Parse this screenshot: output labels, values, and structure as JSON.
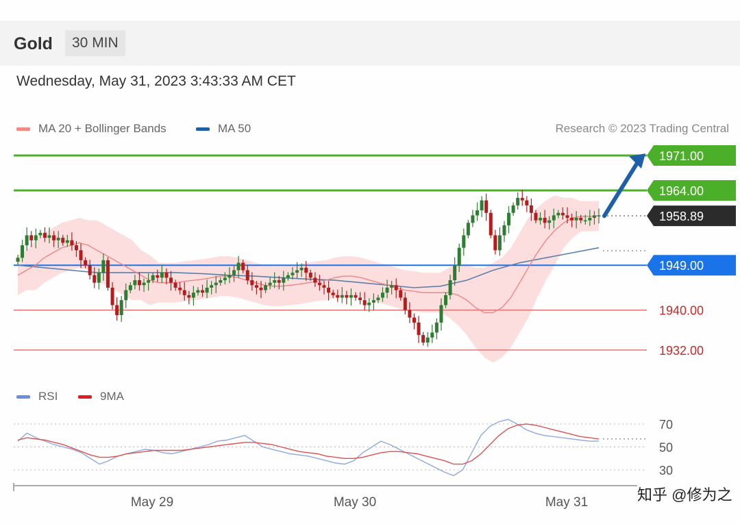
{
  "header": {
    "symbol": "Gold",
    "timeframe": "30 MIN"
  },
  "datetime": "Wednesday, May 31, 2023 3:43:33 AM CET",
  "legend_main": [
    {
      "label": "MA 20 + Bollinger Bands",
      "color": "#f08080"
    },
    {
      "label": "MA 50",
      "color": "#1f5fa8"
    }
  ],
  "copyright": "Research © 2023 Trading Central",
  "legend_rsi": [
    {
      "label": "RSI",
      "color": "#6a8fd8"
    },
    {
      "label": "9MA",
      "color": "#e02020"
    }
  ],
  "watermark": "知乎 @修为之",
  "colors": {
    "up": "#2e7d32",
    "down": "#b71c1c",
    "resistance": "#4caf2a",
    "pivot": "#1a73e8",
    "support": "#e57373",
    "last": "#2b2b2b",
    "band": "#fbd3d3",
    "ma20": "#f08080",
    "ma50": "#5a7fa8",
    "rsi": "#8fa8e0",
    "rsi_ma": "#e05050"
  },
  "chart_data": [
    {
      "type": "candlestick",
      "title": "Gold",
      "interval": "30 MIN",
      "yrange": [
        1930,
        1978
      ],
      "x_ticks": [
        "May 29",
        "May 30",
        "May 31"
      ],
      "levels": [
        {
          "value": 1971.0,
          "label": "1971.00",
          "kind": "resistance"
        },
        {
          "value": 1964.0,
          "label": "1964.00",
          "kind": "resistance"
        },
        {
          "value": 1958.89,
          "label": "1958.89",
          "kind": "last"
        },
        {
          "value": 1949.0,
          "label": "1949.00",
          "kind": "pivot"
        },
        {
          "value": 1940.0,
          "label": "1940.00",
          "kind": "support"
        },
        {
          "value": 1932.0,
          "label": "1932.00",
          "kind": "support"
        }
      ],
      "closes": [
        1950.5,
        1953,
        1955,
        1954,
        1955,
        1955.5,
        1954.5,
        1955,
        1954,
        1954.5,
        1953.5,
        1954,
        1953,
        1952,
        1950,
        1949,
        1947,
        1945.5,
        1947.5,
        1950,
        1944.5,
        1941,
        1939,
        1942,
        1944,
        1945,
        1946,
        1945,
        1945.5,
        1946,
        1947,
        1946.5,
        1947.5,
        1946.5,
        1945.5,
        1944.5,
        1944,
        1943,
        1942.5,
        1943.5,
        1944,
        1943.5,
        1944.5,
        1945,
        1945.5,
        1946,
        1946.5,
        1947,
        1948,
        1949.5,
        1948,
        1946,
        1945,
        1944.5,
        1944,
        1945,
        1945.5,
        1946,
        1945.5,
        1946.5,
        1947,
        1947.5,
        1948,
        1948.5,
        1947.5,
        1946.5,
        1945.5,
        1945,
        1944.5,
        1943.5,
        1943,
        1942.5,
        1943,
        1942.5,
        1943,
        1942.5,
        1942,
        1941,
        1941.5,
        1942,
        1942.5,
        1943.5,
        1944.5,
        1945,
        1944,
        1942.5,
        1940,
        1938.5,
        1937.5,
        1935,
        1933.5,
        1934.5,
        1935.5,
        1937.5,
        1941,
        1943,
        1946,
        1949,
        1952.5,
        1955,
        1957.5,
        1959,
        1960,
        1962,
        1959.5,
        1955,
        1952,
        1955,
        1957,
        1959.5,
        1961,
        1962.5,
        1962,
        1961,
        1959.5,
        1958,
        1958.5,
        1957.5,
        1958,
        1959,
        1959.5,
        1959,
        1958.5,
        1958,
        1958.5,
        1958,
        1958,
        1958.5,
        1959,
        1959
      ],
      "ma20": [
        1947,
        1948,
        1949,
        1950.5,
        1951.5,
        1952.5,
        1953,
        1953.5,
        1953,
        1952,
        1951,
        1950,
        1949,
        1948,
        1947,
        1946,
        1945.5,
        1945.5,
        1945.5,
        1945.8,
        1946,
        1946.2,
        1946.5,
        1946.8,
        1946.8,
        1946.5,
        1946,
        1945.5,
        1945,
        1944.8,
        1944.8,
        1945,
        1945.2,
        1945.5,
        1945.8,
        1946,
        1946.5,
        1946.8,
        1946.8,
        1946.5,
        1946,
        1945.5,
        1945,
        1944.5,
        1944,
        1943.8,
        1943.5,
        1943.5,
        1943.5,
        1943.5,
        1943,
        1942,
        1940.5,
        1939.5,
        1939.5,
        1940.5,
        1942.5,
        1945.5,
        1948.5,
        1951.5,
        1954,
        1956,
        1957.5,
        1958.5,
        1958.8,
        1958.8,
        1958.9
      ],
      "ma50": [
        1949,
        1948.5,
        1948,
        1947.5,
        1947.5,
        1947.5,
        1947.5,
        1947.3,
        1947,
        1946.8,
        1946.5,
        1946.2,
        1946,
        1945.5,
        1945,
        1944.5,
        1944.8,
        1946,
        1948,
        1949.5,
        1950.5,
        1951.5,
        1952.5
      ],
      "rsi": [
        55,
        62,
        58,
        55,
        52,
        50,
        48,
        45,
        40,
        35,
        38,
        42,
        44,
        46,
        48,
        47,
        45,
        44,
        46,
        48,
        50,
        52,
        55,
        56,
        58,
        60,
        55,
        50,
        48,
        46,
        44,
        43,
        42,
        40,
        38,
        36,
        35,
        38,
        45,
        50,
        55,
        52,
        48,
        44,
        40,
        36,
        32,
        28,
        25,
        30,
        45,
        60,
        68,
        72,
        74,
        70,
        65,
        62,
        60,
        59,
        58,
        57,
        56,
        55,
        55
      ],
      "rsi_ma": [
        56,
        58,
        57,
        56,
        54,
        52,
        49,
        46,
        43,
        41,
        41,
        42,
        44,
        45,
        46,
        47,
        47,
        47,
        47,
        48,
        49,
        50,
        51,
        52,
        53,
        54,
        54,
        53,
        52,
        50,
        48,
        46,
        45,
        44,
        42,
        41,
        40,
        40,
        41,
        43,
        45,
        46,
        46,
        45,
        44,
        42,
        40,
        38,
        35,
        35,
        38,
        44,
        52,
        60,
        66,
        69,
        70,
        69,
        67,
        65,
        63,
        61,
        59,
        58,
        57
      ]
    },
    {
      "type": "line",
      "series": [
        {
          "name": "RSI"
        },
        {
          "name": "9MA"
        }
      ],
      "yrange": [
        20,
        80
      ],
      "y_ticks": [
        30,
        50,
        70
      ]
    }
  ]
}
